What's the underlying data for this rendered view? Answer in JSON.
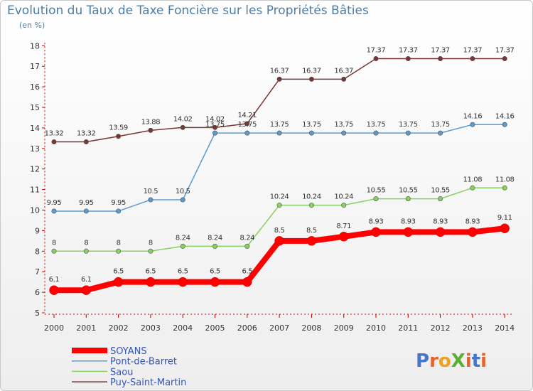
{
  "title": "Evolution du Taux de Taxe Foncière sur les Propriétés Bâties",
  "unit": "(en %)",
  "logo": "ProXiti",
  "chart_data": {
    "type": "line",
    "title": "Evolution du Taux de Taxe Foncière sur les Propriétés Bâties",
    "ylabel": "(en %)",
    "xlabel": "",
    "ylim": [
      5,
      18
    ],
    "yticks": [
      "5",
      "6",
      "7",
      "8",
      "9",
      "10",
      "11",
      "12",
      "13",
      "14",
      "15",
      "16",
      "17",
      "18"
    ],
    "categories": [
      "2000",
      "2001",
      "2002",
      "2003",
      "2004",
      "2005",
      "2006",
      "2007",
      "2008",
      "2009",
      "2010",
      "2011",
      "2012",
      "2013",
      "2014"
    ],
    "series": [
      {
        "name": "SOYANS",
        "color": "#ff0000",
        "values": [
          6.1,
          6.1,
          6.5,
          6.5,
          6.5,
          6.5,
          6.5,
          8.5,
          8.5,
          8.71,
          8.93,
          8.93,
          8.93,
          8.93,
          9.11
        ],
        "labels": [
          "6.1",
          "6.1",
          "6.5",
          "6.5",
          "6.5",
          "6.5",
          "6.5",
          "8.5",
          "8.5",
          "8.71",
          "8.93",
          "8.93",
          "8.93",
          "8.93",
          "9.11"
        ]
      },
      {
        "name": "Pont-de-Barret",
        "color": "#5b9bd0",
        "values": [
          9.95,
          9.95,
          9.95,
          10.5,
          10.5,
          13.75,
          13.75,
          13.75,
          13.75,
          13.75,
          13.75,
          13.75,
          13.75,
          14.16,
          14.16
        ],
        "labels": [
          "9.95",
          "9.95",
          "9.95",
          "10.5",
          "10.5",
          "13.75",
          "13.75",
          "13.75",
          "13.75",
          "13.75",
          "13.75",
          "13.75",
          "13.75",
          "14.16",
          "14.16"
        ]
      },
      {
        "name": "Saou",
        "color": "#88d160",
        "values": [
          8,
          8,
          8,
          8,
          8.24,
          8.24,
          8.24,
          10.24,
          10.24,
          10.24,
          10.55,
          10.55,
          10.55,
          11.08,
          11.08
        ],
        "labels": [
          "8",
          "8",
          "8",
          "8",
          "8.24",
          "8.24",
          "8.24",
          "10.24",
          "10.24",
          "10.24",
          "10.55",
          "10.55",
          "10.55",
          "11.08",
          "11.08"
        ]
      },
      {
        "name": "Puy-Saint-Martin",
        "color": "#7a3535",
        "values": [
          13.32,
          13.32,
          13.59,
          13.88,
          14.02,
          14.02,
          14.21,
          16.37,
          16.37,
          16.37,
          17.37,
          17.37,
          17.37,
          17.37,
          17.37
        ],
        "labels": [
          "13.32",
          "13.32",
          "13.59",
          "13.88",
          "14.02",
          "14.02",
          "14.21",
          "16.37",
          "16.37",
          "16.37",
          "17.37",
          "17.37",
          "17.37",
          "17.37",
          "17.37"
        ]
      }
    ],
    "grid": false,
    "legend": "bottom-left"
  }
}
